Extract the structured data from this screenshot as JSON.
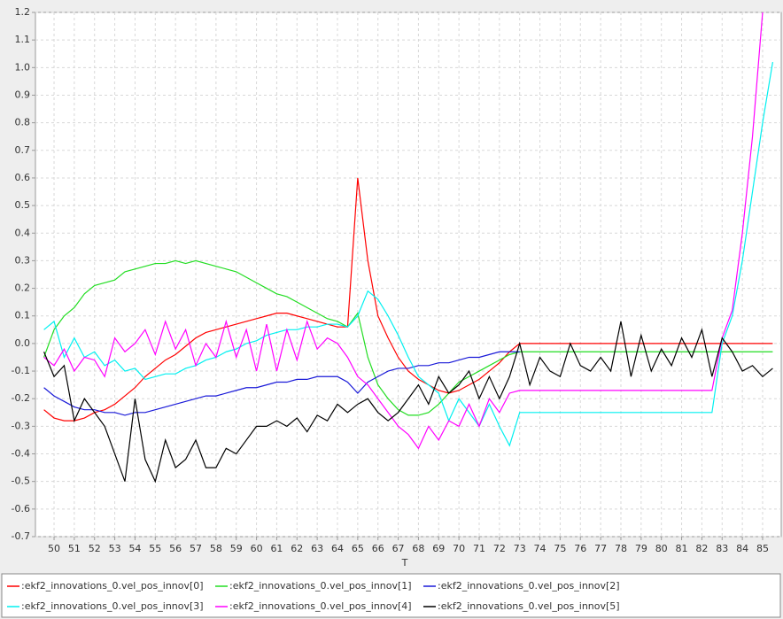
{
  "chart_data": {
    "type": "line",
    "xlabel": "T",
    "xlim": [
      49.08,
      85.92
    ],
    "ylim": [
      -0.7,
      1.2
    ],
    "xticks": [
      50,
      51,
      52,
      53,
      54,
      55,
      56,
      57,
      58,
      59,
      60,
      61,
      62,
      63,
      64,
      65,
      66,
      67,
      68,
      69,
      70,
      71,
      72,
      73,
      74,
      75,
      76,
      77,
      78,
      79,
      80,
      81,
      82,
      83,
      84,
      85
    ],
    "yticks": [
      -0.7,
      -0.6,
      -0.5,
      -0.4,
      -0.3,
      -0.2,
      -0.1,
      {
        "value": 0,
        "label": "0.0"
      },
      0.1,
      0.2,
      0.3,
      0.4,
      0.5,
      0.6,
      0.7,
      0.8,
      0.9,
      {
        "value": 1,
        "label": "1.0"
      },
      1.1,
      1.2
    ],
    "grid": true,
    "legend": "bottom",
    "x": [
      49.5,
      50,
      50.5,
      51,
      51.5,
      52,
      52.5,
      53,
      53.5,
      54,
      54.5,
      55,
      55.5,
      56,
      56.5,
      57,
      57.5,
      58,
      58.5,
      59,
      59.5,
      60,
      60.5,
      61,
      61.5,
      62,
      62.5,
      63,
      63.5,
      64,
      64.5,
      65,
      65.5,
      66,
      66.5,
      67,
      67.5,
      68,
      68.5,
      69,
      69.5,
      70,
      70.5,
      71,
      71.5,
      72,
      72.5,
      73,
      73.5,
      74,
      74.5,
      75,
      75.5,
      76,
      76.5,
      77,
      77.5,
      78,
      78.5,
      79,
      79.5,
      80,
      80.5,
      81,
      81.5,
      82,
      82.5,
      83,
      83.5,
      84,
      84.5,
      85,
      85.5
    ],
    "series": [
      {
        "name": ":ekf2_innovations_0.vel_pos_innov[0]",
        "color": "#ff0000",
        "values": [
          -0.24,
          -0.27,
          -0.28,
          -0.28,
          -0.27,
          -0.25,
          -0.24,
          -0.22,
          -0.19,
          -0.16,
          -0.12,
          -0.09,
          -0.06,
          -0.04,
          -0.01,
          0.02,
          0.04,
          0.05,
          0.06,
          0.07,
          0.08,
          0.09,
          0.1,
          0.11,
          0.11,
          0.1,
          0.09,
          0.08,
          0.07,
          0.06,
          0.06,
          0.6,
          0.3,
          0.1,
          0.02,
          -0.05,
          -0.1,
          -0.13,
          -0.15,
          -0.17,
          -0.18,
          -0.17,
          -0.15,
          -0.13,
          -0.1,
          -0.07,
          -0.03,
          0,
          0,
          0,
          0,
          0,
          0,
          0,
          0,
          0,
          0,
          0,
          0,
          0,
          0,
          0,
          0,
          0,
          0,
          0,
          0,
          0,
          0,
          0,
          0,
          0,
          0
        ]
      },
      {
        "name": ":ekf2_innovations_0.vel_pos_innov[1]",
        "color": "#22dd22",
        "values": [
          -0.05,
          0.05,
          0.1,
          0.13,
          0.18,
          0.21,
          0.22,
          0.23,
          0.26,
          0.27,
          0.28,
          0.29,
          0.29,
          0.3,
          0.29,
          0.3,
          0.29,
          0.28,
          0.27,
          0.26,
          0.24,
          0.22,
          0.2,
          0.18,
          0.17,
          0.15,
          0.13,
          0.11,
          0.09,
          0.08,
          0.06,
          0.11,
          -0.05,
          -0.15,
          -0.2,
          -0.24,
          -0.26,
          -0.26,
          -0.25,
          -0.22,
          -0.18,
          -0.14,
          -0.12,
          -0.1,
          -0.08,
          -0.06,
          -0.04,
          -0.03,
          -0.03,
          -0.03,
          -0.03,
          -0.03,
          -0.03,
          -0.03,
          -0.03,
          -0.03,
          -0.03,
          -0.03,
          -0.03,
          -0.03,
          -0.03,
          -0.03,
          -0.03,
          -0.03,
          -0.03,
          -0.03,
          -0.03,
          -0.03,
          -0.03,
          -0.03,
          -0.03,
          -0.03,
          -0.03
        ]
      },
      {
        "name": ":ekf2_innovations_0.vel_pos_innov[2]",
        "color": "#1a1ad8",
        "values": [
          -0.16,
          -0.19,
          -0.21,
          -0.23,
          -0.24,
          -0.24,
          -0.25,
          -0.25,
          -0.26,
          -0.25,
          -0.25,
          -0.24,
          -0.23,
          -0.22,
          -0.21,
          -0.2,
          -0.19,
          -0.19,
          -0.18,
          -0.17,
          -0.16,
          -0.16,
          -0.15,
          -0.14,
          -0.14,
          -0.13,
          -0.13,
          -0.12,
          -0.12,
          -0.12,
          -0.14,
          -0.18,
          -0.14,
          -0.12,
          -0.1,
          -0.09,
          -0.09,
          -0.08,
          -0.08,
          -0.07,
          -0.07,
          -0.06,
          -0.05,
          -0.05,
          -0.04,
          -0.03,
          -0.03,
          -0.03,
          null,
          null,
          null,
          null,
          null,
          null,
          null,
          null,
          null,
          null,
          null,
          null,
          null,
          null,
          null,
          null,
          null,
          null,
          null,
          null,
          null,
          null,
          null,
          null,
          null
        ]
      },
      {
        "name": ":ekf2_innovations_0.vel_pos_innov[3]",
        "color": "#00f0f0",
        "values": [
          0.05,
          0.08,
          -0.05,
          0.02,
          -0.05,
          -0.03,
          -0.08,
          -0.06,
          -0.1,
          -0.09,
          -0.13,
          -0.12,
          -0.11,
          -0.11,
          -0.09,
          -0.08,
          -0.06,
          -0.05,
          -0.03,
          -0.02,
          0,
          0.01,
          0.03,
          0.04,
          0.05,
          0.05,
          0.06,
          0.06,
          0.07,
          0.07,
          0.06,
          0.1,
          0.19,
          0.16,
          0.1,
          0.03,
          -0.05,
          -0.12,
          -0.15,
          -0.18,
          -0.28,
          -0.2,
          -0.25,
          -0.3,
          -0.22,
          -0.3,
          -0.37,
          -0.25,
          -0.25,
          -0.25,
          -0.25,
          -0.25,
          -0.25,
          -0.25,
          -0.25,
          -0.25,
          -0.25,
          -0.25,
          -0.25,
          -0.25,
          -0.25,
          -0.25,
          -0.25,
          -0.25,
          -0.25,
          -0.25,
          -0.25,
          0,
          0.1,
          0.3,
          0.55,
          0.8,
          1.02
        ]
      },
      {
        "name": ":ekf2_innovations_0.vel_pos_innov[4]",
        "color": "#ff00ff",
        "values": [
          -0.05,
          -0.08,
          -0.02,
          -0.1,
          -0.05,
          -0.06,
          -0.12,
          0.02,
          -0.03,
          0,
          0.05,
          -0.04,
          0.08,
          -0.02,
          0.05,
          -0.08,
          0,
          -0.05,
          0.08,
          -0.05,
          0.05,
          -0.1,
          0.07,
          -0.1,
          0.05,
          -0.06,
          0.08,
          -0.02,
          0.02,
          0,
          -0.05,
          -0.12,
          -0.15,
          -0.2,
          -0.25,
          -0.3,
          -0.33,
          -0.38,
          -0.3,
          -0.35,
          -0.28,
          -0.3,
          -0.22,
          -0.3,
          -0.2,
          -0.25,
          -0.18,
          -0.17,
          -0.17,
          -0.17,
          -0.17,
          -0.17,
          -0.17,
          -0.17,
          -0.17,
          -0.17,
          -0.17,
          -0.17,
          -0.17,
          -0.17,
          -0.17,
          -0.17,
          -0.17,
          -0.17,
          -0.17,
          -0.17,
          -0.17,
          0.02,
          0.12,
          0.4,
          0.75,
          1.2,
          null
        ]
      },
      {
        "name": ":ekf2_innovations_0.vel_pos_innov[5]",
        "color": "#000000",
        "values": [
          -0.03,
          -0.12,
          -0.08,
          -0.28,
          -0.2,
          -0.25,
          -0.3,
          -0.4,
          -0.5,
          -0.2,
          -0.42,
          -0.5,
          -0.35,
          -0.45,
          -0.42,
          -0.35,
          -0.45,
          -0.45,
          -0.38,
          -0.4,
          -0.35,
          -0.3,
          -0.3,
          -0.28,
          -0.3,
          -0.27,
          -0.32,
          -0.26,
          -0.28,
          -0.22,
          -0.25,
          -0.22,
          -0.2,
          -0.25,
          -0.28,
          -0.25,
          -0.2,
          -0.15,
          -0.22,
          -0.12,
          -0.18,
          -0.15,
          -0.1,
          -0.2,
          -0.12,
          -0.2,
          -0.12,
          0,
          -0.15,
          -0.05,
          -0.1,
          -0.12,
          0,
          -0.08,
          -0.1,
          -0.05,
          -0.1,
          0.08,
          -0.12,
          0.03,
          -0.1,
          -0.02,
          -0.08,
          0.02,
          -0.05,
          0.05,
          -0.12,
          0.02,
          -0.03,
          -0.1,
          -0.08,
          -0.12,
          -0.09
        ]
      }
    ]
  }
}
